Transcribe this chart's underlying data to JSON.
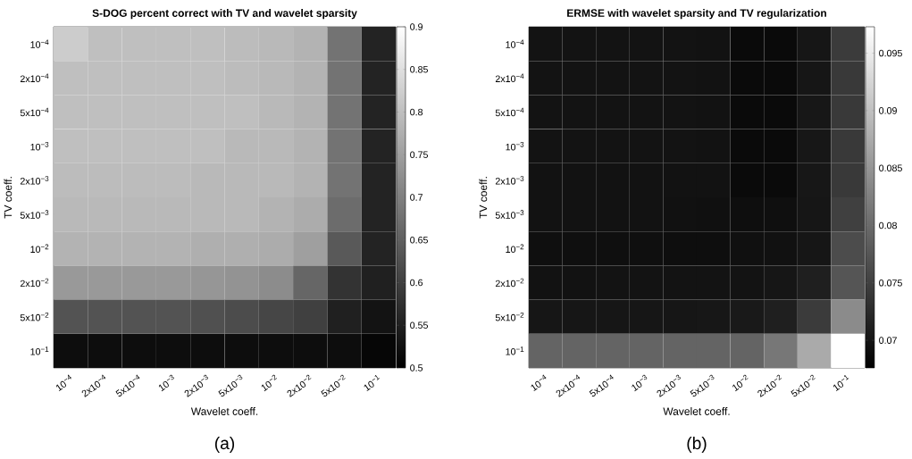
{
  "chart_data": [
    {
      "type": "heatmap",
      "title": "S-DOG percent correct with TV and wavelet sparsity",
      "xlabel": "Wavelet coeff.",
      "ylabel": "TV coeff.",
      "categories": [
        "10$^{−4}$",
        "2x10$^{−4}$",
        "5x10$^{−4}$",
        "10$^{−3}$",
        "2x10$^{−3}$",
        "5x10$^{−3}$",
        "10$^{−2}$",
        "2x10$^{−2}$",
        "5x10$^{−2}$",
        "10$^{−1}$"
      ],
      "y_categories": [
        "10$^{−4}$",
        "2x10$^{−4}$",
        "5x10$^{−4}$",
        "10$^{−3}$",
        "2x10$^{−3}$",
        "5x10$^{−3}$",
        "10$^{−2}$",
        "2x10$^{−2}$",
        "5x10$^{−2}$",
        "10$^{−1}$"
      ],
      "cells": [
        [
          0.82,
          0.8,
          0.8,
          0.8,
          0.8,
          0.795,
          0.79,
          0.78,
          0.68,
          0.555
        ],
        [
          0.8,
          0.8,
          0.8,
          0.8,
          0.8,
          0.795,
          0.79,
          0.78,
          0.68,
          0.555
        ],
        [
          0.8,
          0.8,
          0.8,
          0.8,
          0.8,
          0.8,
          0.79,
          0.78,
          0.68,
          0.555
        ],
        [
          0.8,
          0.8,
          0.8,
          0.8,
          0.8,
          0.79,
          0.79,
          0.78,
          0.68,
          0.555
        ],
        [
          0.795,
          0.795,
          0.795,
          0.795,
          0.79,
          0.79,
          0.79,
          0.78,
          0.68,
          0.555
        ],
        [
          0.79,
          0.79,
          0.79,
          0.79,
          0.79,
          0.79,
          0.78,
          0.77,
          0.67,
          0.555
        ],
        [
          0.78,
          0.78,
          0.78,
          0.78,
          0.775,
          0.775,
          0.77,
          0.75,
          0.64,
          0.555
        ],
        [
          0.74,
          0.74,
          0.74,
          0.74,
          0.735,
          0.73,
          0.72,
          0.66,
          0.58,
          0.55
        ],
        [
          0.63,
          0.63,
          0.63,
          0.63,
          0.625,
          0.62,
          0.61,
          0.6,
          0.55,
          0.53
        ],
        [
          0.52,
          0.52,
          0.52,
          0.52,
          0.52,
          0.52,
          0.52,
          0.52,
          0.52,
          0.51
        ]
      ],
      "clim": [
        0.5,
        0.9
      ],
      "cticks": [
        0.5,
        0.55,
        0.6,
        0.65,
        0.7,
        0.75,
        0.8,
        0.85,
        0.9
      ],
      "annotations": [
        "(a)"
      ]
    },
    {
      "type": "heatmap",
      "title": "ERMSE with wavelet sparsity and TV regularization",
      "xlabel": "Wavelet coeff.",
      "ylabel": "TV coeff.",
      "categories": [
        "10$^{−4}$",
        "2x10$^{−4}$",
        "5x10$^{−4}$",
        "10$^{−3}$",
        "2x10$^{−3}$",
        "5x10$^{−3}$",
        "10$^{−2}$",
        "2x10$^{−2}$",
        "5x10$^{−2}$",
        "10$^{−1}$"
      ],
      "y_categories": [
        "10$^{−4}$",
        "2x10$^{−4}$",
        "5x10$^{−4}$",
        "10$^{−3}$",
        "2x10$^{−3}$",
        "5x10$^{−3}$",
        "10$^{−2}$",
        "2x10$^{−2}$",
        "5x10$^{−2}$",
        "10$^{−1}$"
      ],
      "cells": [
        [
          0.0698,
          0.0698,
          0.0698,
          0.0698,
          0.0698,
          0.0697,
          0.0688,
          0.0688,
          0.0702,
          0.0745
        ],
        [
          0.0698,
          0.0698,
          0.0698,
          0.0698,
          0.0698,
          0.0697,
          0.0688,
          0.0688,
          0.0702,
          0.0742
        ],
        [
          0.0698,
          0.0698,
          0.0698,
          0.0698,
          0.0698,
          0.0697,
          0.0688,
          0.0688,
          0.0703,
          0.0742
        ],
        [
          0.0698,
          0.0698,
          0.0698,
          0.0698,
          0.0698,
          0.0697,
          0.0688,
          0.0688,
          0.0703,
          0.0742
        ],
        [
          0.0697,
          0.0697,
          0.0697,
          0.0697,
          0.0697,
          0.0697,
          0.0688,
          0.0688,
          0.0703,
          0.0742
        ],
        [
          0.0697,
          0.0697,
          0.0697,
          0.0697,
          0.0696,
          0.0695,
          0.0692,
          0.0694,
          0.0702,
          0.075
        ],
        [
          0.0693,
          0.0693,
          0.0693,
          0.0693,
          0.0692,
          0.0692,
          0.0695,
          0.0696,
          0.0702,
          0.0765
        ],
        [
          0.0697,
          0.0697,
          0.0698,
          0.0698,
          0.0698,
          0.0698,
          0.0698,
          0.0702,
          0.0712,
          0.0775
        ],
        [
          0.0702,
          0.0702,
          0.0702,
          0.0702,
          0.0702,
          0.0703,
          0.0705,
          0.0712,
          0.0745,
          0.0838
        ],
        [
          0.0792,
          0.0792,
          0.0792,
          0.0792,
          0.0792,
          0.0792,
          0.0792,
          0.0815,
          0.0874,
          0.0973
        ]
      ],
      "clim": [
        0.0676,
        0.0973
      ],
      "cticks": [
        0.07,
        0.075,
        0.08,
        0.085,
        0.09,
        0.095
      ],
      "annotations": [
        "(b)"
      ]
    }
  ]
}
